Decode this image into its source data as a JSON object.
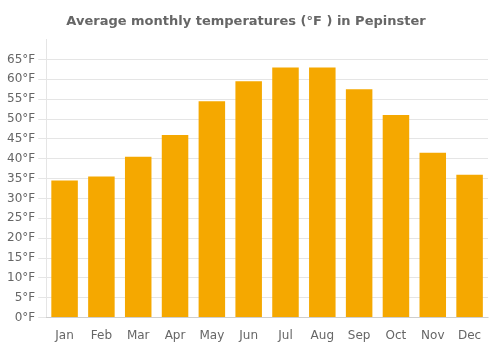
{
  "chart_data": {
    "type": "bar",
    "title": "Average monthly temperatures (°F ) in Pepinster",
    "categories": [
      "Jan",
      "Feb",
      "Mar",
      "Apr",
      "May",
      "Jun",
      "Jul",
      "Aug",
      "Sep",
      "Oct",
      "Nov",
      "Dec"
    ],
    "values": [
      34.5,
      35.5,
      40.5,
      46.0,
      54.5,
      59.5,
      63.0,
      63.0,
      57.5,
      51.0,
      41.5,
      36.0
    ],
    "color": "#F5A800",
    "ylim": [
      0,
      70
    ],
    "yticks": [
      {
        "value": 0,
        "label": "0°F"
      },
      {
        "value": 5,
        "label": "5°F"
      },
      {
        "value": 10,
        "label": "10°F"
      },
      {
        "value": 15,
        "label": "15°F"
      },
      {
        "value": 20,
        "label": "20°F"
      },
      {
        "value": 25,
        "label": "25°F"
      },
      {
        "value": 30,
        "label": "30°F"
      },
      {
        "value": 35,
        "label": "35°F"
      },
      {
        "value": 40,
        "label": "40°F"
      },
      {
        "value": 45,
        "label": "45°F"
      },
      {
        "value": 50,
        "label": "50°F"
      },
      {
        "value": 55,
        "label": "55°F"
      },
      {
        "value": 60,
        "label": "60°F"
      },
      {
        "value": 65,
        "label": "65°F"
      }
    ],
    "grid": true
  }
}
